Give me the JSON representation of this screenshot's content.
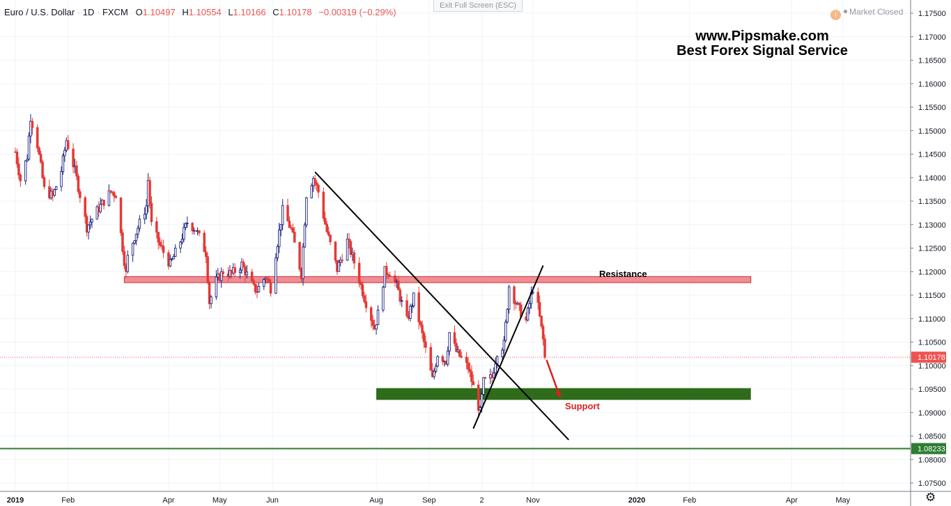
{
  "header": {
    "symbol": "Euro / U.S. Dollar",
    "interval": "1D",
    "exchange": "FXCM",
    "o_key": "O",
    "o_val": "1.10497",
    "h_key": "H",
    "h_val": "1.10554",
    "l_key": "L",
    "l_val": "1.10166",
    "c_key": "C",
    "c_val": "1.10178",
    "change": "−0.00319 (−0.29%)"
  },
  "exit_fullscreen_label": "Exit Full Screen (ESC)",
  "market_status": {
    "icon": "info-icon",
    "icon_glyph": "i",
    "text": "Market Closed"
  },
  "watermark": {
    "line1": "www.Pipsmake.com",
    "line2": "Best Forex Signal Service"
  },
  "annotations": {
    "resistance": "Resistance",
    "support": "Support"
  },
  "colors": {
    "up": "#1a237e",
    "down": "#e53935",
    "resistance": "#f28b95",
    "support": "#2e6b1b",
    "last_price": "#ef5350",
    "green_line": "#2e7d32"
  },
  "chart_data": {
    "type": "candlestick",
    "symbol": "EURUSD",
    "interval": "1D",
    "ylim": [
      1.0725,
      1.1785
    ],
    "y_ticks": [
      "1.17500",
      "1.17000",
      "1.16500",
      "1.16000",
      "1.15500",
      "1.15000",
      "1.14500",
      "1.14000",
      "1.13500",
      "1.13000",
      "1.12500",
      "1.12000",
      "1.11500",
      "1.11000",
      "1.10500",
      "1.10000",
      "1.09500",
      "1.09000",
      "1.08500",
      "1.08000",
      "1.07500"
    ],
    "x_range": [
      "2019-01-01",
      "2020-05-20"
    ],
    "x_ticks": [
      {
        "date": "2019-01-01",
        "label": "2019"
      },
      {
        "date": "2019-02-01",
        "label": "Feb"
      },
      {
        "date": "2019-04-01",
        "label": "Apr"
      },
      {
        "date": "2019-05-01",
        "label": "May"
      },
      {
        "date": "2019-06-01",
        "label": "Jun"
      },
      {
        "date": "2019-08-01",
        "label": "Aug"
      },
      {
        "date": "2019-09-01",
        "label": "Sep"
      },
      {
        "date": "2019-10-02",
        "label": "2"
      },
      {
        "date": "2019-11-01",
        "label": "Nov"
      },
      {
        "date": "2020-01-01",
        "label": "2020"
      },
      {
        "date": "2020-02-01",
        "label": "Feb"
      },
      {
        "date": "2020-04-01",
        "label": "Apr"
      },
      {
        "date": "2020-05-01",
        "label": "May"
      }
    ],
    "price_anchors": [
      [
        "2019-01-01",
        1.1455
      ],
      [
        "2019-01-04",
        1.1395
      ],
      [
        "2019-01-08",
        1.1445
      ],
      [
        "2019-01-10",
        1.153
      ],
      [
        "2019-01-14",
        1.147
      ],
      [
        "2019-01-18",
        1.1375
      ],
      [
        "2019-01-23",
        1.136
      ],
      [
        "2019-01-28",
        1.1415
      ],
      [
        "2019-01-31",
        1.148
      ],
      [
        "2019-02-05",
        1.1415
      ],
      [
        "2019-02-12",
        1.1295
      ],
      [
        "2019-02-19",
        1.1335
      ],
      [
        "2019-02-26",
        1.137
      ],
      [
        "2019-03-01",
        1.1365
      ],
      [
        "2019-03-07",
        1.1195
      ],
      [
        "2019-03-08",
        1.123
      ],
      [
        "2019-03-12",
        1.1275
      ],
      [
        "2019-03-19",
        1.134
      ],
      [
        "2019-03-20",
        1.1395
      ],
      [
        "2019-03-22",
        1.13
      ],
      [
        "2019-03-27",
        1.1255
      ],
      [
        "2019-04-02",
        1.1215
      ],
      [
        "2019-04-08",
        1.1265
      ],
      [
        "2019-04-12",
        1.1305
      ],
      [
        "2019-04-17",
        1.129
      ],
      [
        "2019-04-23",
        1.124
      ],
      [
        "2019-04-25",
        1.1135
      ],
      [
        "2019-04-29",
        1.118
      ],
      [
        "2019-05-03",
        1.12
      ],
      [
        "2019-05-08",
        1.1195
      ],
      [
        "2019-05-14",
        1.1215
      ],
      [
        "2019-05-21",
        1.1165
      ],
      [
        "2019-05-23",
        1.116
      ],
      [
        "2019-05-28",
        1.119
      ],
      [
        "2019-05-31",
        1.1165
      ],
      [
        "2019-06-03",
        1.124
      ],
      [
        "2019-06-07",
        1.133
      ],
      [
        "2019-06-12",
        1.129
      ],
      [
        "2019-06-18",
        1.1195
      ],
      [
        "2019-06-21",
        1.1365
      ],
      [
        "2019-06-25",
        1.14
      ],
      [
        "2019-06-28",
        1.137
      ],
      [
        "2019-07-03",
        1.1285
      ],
      [
        "2019-07-09",
        1.1205
      ],
      [
        "2019-07-15",
        1.1265
      ],
      [
        "2019-07-19",
        1.122
      ],
      [
        "2019-07-25",
        1.1145
      ],
      [
        "2019-07-31",
        1.108
      ],
      [
        "2019-08-02",
        1.111
      ],
      [
        "2019-08-06",
        1.12
      ],
      [
        "2019-08-09",
        1.12
      ],
      [
        "2019-08-13",
        1.117
      ],
      [
        "2019-08-19",
        1.1095
      ],
      [
        "2019-08-23",
        1.1145
      ],
      [
        "2019-08-28",
        1.1065
      ],
      [
        "2019-09-03",
        1.097
      ],
      [
        "2019-09-06",
        1.1025
      ],
      [
        "2019-09-11",
        1.101
      ],
      [
        "2019-09-13",
        1.107
      ],
      [
        "2019-09-17",
        1.103
      ],
      [
        "2019-09-20",
        1.1015
      ],
      [
        "2019-09-24",
        1.0995
      ],
      [
        "2019-10-01",
        1.09
      ],
      [
        "2019-10-03",
        1.0965
      ],
      [
        "2019-10-08",
        1.0975
      ],
      [
        "2019-10-11",
        1.103
      ],
      [
        "2019-10-15",
        1.1045
      ],
      [
        "2019-10-18",
        1.117
      ],
      [
        "2019-10-23",
        1.1125
      ],
      [
        "2019-10-28",
        1.1095
      ],
      [
        "2019-10-31",
        1.115
      ],
      [
        "2019-11-01",
        1.1165
      ],
      [
        "2019-11-04",
        1.1125
      ],
      [
        "2019-11-07",
        1.1055
      ],
      [
        "2019-11-08",
        1.1018
      ]
    ],
    "last_close": 1.10178,
    "last_close_label": "1.10178",
    "horizontal_line": {
      "price": 1.08233,
      "label": "1.08233"
    },
    "resistance_zone": {
      "from": "2019-03-06",
      "to": "2020-03-08",
      "low": 1.1178,
      "high": 1.1188
    },
    "support_zone": {
      "from": "2019-08-01",
      "to": "2020-03-08",
      "low": 1.0927,
      "high": 1.0952
    },
    "trendlines": [
      {
        "from": [
          "2019-06-26",
          1.1412
        ],
        "to": [
          "2019-11-22",
          1.0842
        ],
        "color": "#000000"
      },
      {
        "from": [
          "2019-09-27",
          1.0866
        ],
        "to": [
          "2019-11-07",
          1.1213
        ],
        "color": "#000000"
      }
    ],
    "arrow": {
      "from": [
        "2019-11-09",
        1.1012
      ],
      "to": [
        "2019-11-17",
        1.0932
      ],
      "color": "#e01e1e"
    },
    "grid": true,
    "title": "Euro / U.S. Dollar"
  }
}
